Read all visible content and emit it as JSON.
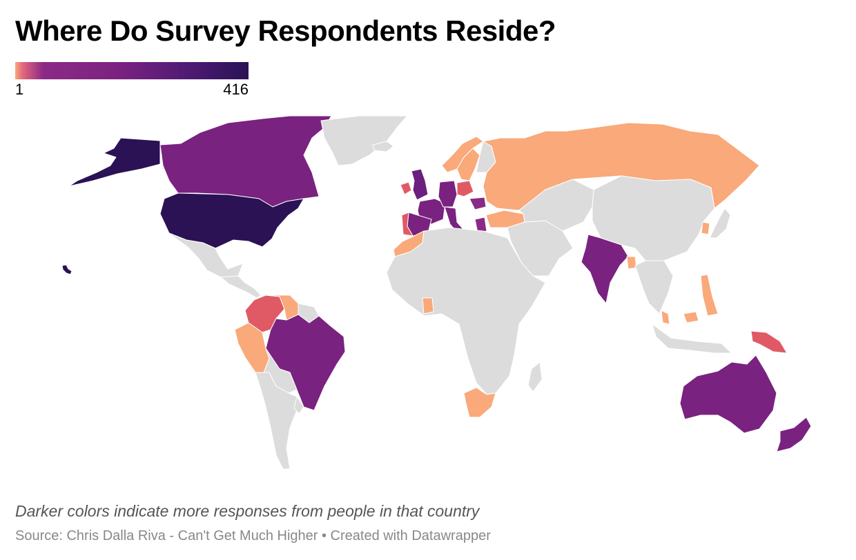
{
  "header": {
    "title": "Where Do Survey Respondents Reside?"
  },
  "legend": {
    "min_label": "1",
    "max_label": "416",
    "colors": [
      "#f9a97a",
      "#e46a7c",
      "#8b2a86",
      "#7a2280",
      "#4d1a73",
      "#2a1255"
    ]
  },
  "footer": {
    "note": "Darker colors indicate more responses from people in that country",
    "source": "Source: Chris Dalla Riva - Can't Get Much Higher • Created with Datawrapper"
  },
  "colors": {
    "no_data": "#dcdcdc",
    "border": "#ffffff"
  },
  "chart_data": {
    "type": "choropleth",
    "title": "Where Do Survey Respondents Reside?",
    "scale": {
      "min": 1,
      "max": 416
    },
    "regions": [
      {
        "country": "United States",
        "color": "#2a1255"
      },
      {
        "country": "Alaska (US)",
        "color": "#2a1255"
      },
      {
        "country": "Hawaii (US)",
        "color": "#2a1255"
      },
      {
        "country": "Canada",
        "color": "#7a2280"
      },
      {
        "country": "Greenland",
        "color": "#dcdcdc"
      },
      {
        "country": "Mexico",
        "color": "#dcdcdc"
      },
      {
        "country": "Central America",
        "color": "#dcdcdc"
      },
      {
        "country": "Colombia",
        "color": "#e05a66"
      },
      {
        "country": "Venezuela",
        "color": "#f9a97a"
      },
      {
        "country": "Guyana / Suriname",
        "color": "#dcdcdc"
      },
      {
        "country": "Peru",
        "color": "#f9a97a"
      },
      {
        "country": "Brazil",
        "color": "#7a2280"
      },
      {
        "country": "Bolivia / Paraguay",
        "color": "#dcdcdc"
      },
      {
        "country": "Chile / Argentina",
        "color": "#dcdcdc"
      },
      {
        "country": "Uruguay",
        "color": "#dcdcdc"
      },
      {
        "country": "Iceland",
        "color": "#dcdcdc"
      },
      {
        "country": "Norway",
        "color": "#f9a97a"
      },
      {
        "country": "Sweden",
        "color": "#f9a97a"
      },
      {
        "country": "Finland",
        "color": "#dcdcdc"
      },
      {
        "country": "United Kingdom",
        "color": "#6b1f7e"
      },
      {
        "country": "Ireland",
        "color": "#e05a66"
      },
      {
        "country": "France",
        "color": "#7a2280"
      },
      {
        "country": "Spain",
        "color": "#7a2280"
      },
      {
        "country": "Portugal",
        "color": "#e05a66"
      },
      {
        "country": "Germany",
        "color": "#7a2280"
      },
      {
        "country": "Poland",
        "color": "#e05a66"
      },
      {
        "country": "Italy",
        "color": "#7a2280"
      },
      {
        "country": "Greece",
        "color": "#8b2a86"
      },
      {
        "country": "Romania",
        "color": "#8b2a86"
      },
      {
        "country": "Turkey",
        "color": "#f9a97a"
      },
      {
        "country": "Russia",
        "color": "#f9a97a"
      },
      {
        "country": "Morocco",
        "color": "#f9a97a"
      },
      {
        "country": "Africa (other)",
        "color": "#dcdcdc"
      },
      {
        "country": "Ghana",
        "color": "#f9a97a"
      },
      {
        "country": "South Africa",
        "color": "#f9a97a"
      },
      {
        "country": "Madagascar",
        "color": "#dcdcdc"
      },
      {
        "country": "Middle East",
        "color": "#dcdcdc"
      },
      {
        "country": "Central Asia",
        "color": "#dcdcdc"
      },
      {
        "country": "India",
        "color": "#7a2280"
      },
      {
        "country": "Bangladesh",
        "color": "#f9a97a"
      },
      {
        "country": "China / Mongolia",
        "color": "#dcdcdc"
      },
      {
        "country": "South Korea",
        "color": "#f9a97a"
      },
      {
        "country": "Japan",
        "color": "#dcdcdc"
      },
      {
        "country": "Southeast Asia",
        "color": "#dcdcdc"
      },
      {
        "country": "Philippines",
        "color": "#f9a97a"
      },
      {
        "country": "Malaysia",
        "color": "#f9a97a"
      },
      {
        "country": "Indonesia",
        "color": "#dcdcdc"
      },
      {
        "country": "Papua New Guinea",
        "color": "#e05a66"
      },
      {
        "country": "Australia",
        "color": "#7a2280"
      },
      {
        "country": "New Zealand",
        "color": "#7a2280"
      }
    ]
  }
}
